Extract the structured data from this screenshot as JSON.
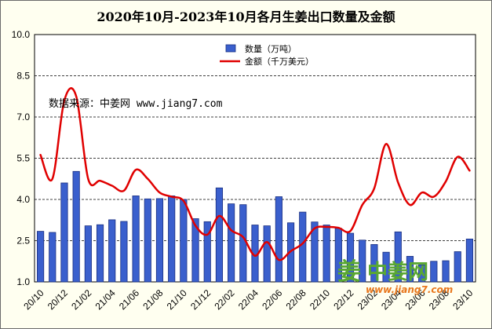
{
  "chart_data": {
    "type": "bar",
    "title": "2020年10月-2023年10月各月生姜出口数量及金额",
    "source_note": "数据来源：中姜网 www.jiang7.com",
    "categories": [
      "20/10",
      "20/11",
      "20/12",
      "21/01",
      "21/02",
      "21/03",
      "21/04",
      "21/05",
      "21/06",
      "21/07",
      "21/08",
      "21/09",
      "21/10",
      "21/11",
      "21/12",
      "22/01",
      "22/02",
      "22/03",
      "22/04",
      "22/05",
      "22/06",
      "22/07",
      "22/08",
      "22/09",
      "22/10",
      "22/11",
      "22/12",
      "23/01",
      "23/02",
      "23/03",
      "23/04",
      "23/05",
      "23/06",
      "23/07",
      "23/08",
      "23/09",
      "23/10"
    ],
    "tick_labels": [
      "20/10",
      "20/12",
      "21/02",
      "21/04",
      "21/06",
      "21/08",
      "21/10",
      "21/12",
      "22/02",
      "22/04",
      "22/06",
      "22/08",
      "22/10",
      "22/12",
      "23/02",
      "23/04",
      "23/06",
      "23/08",
      "23/10"
    ],
    "ylim": [
      1.0,
      10.0
    ],
    "yticks": [
      "1.0",
      "2.5",
      "4.0",
      "5.5",
      "7.0",
      "8.5",
      "10.0"
    ],
    "grid": true,
    "legend_position": "top-center",
    "series": [
      {
        "name": "数量（万吨）",
        "kind": "bar",
        "color": "#3a5fcd",
        "values": [
          2.84,
          2.8,
          4.6,
          5.02,
          3.04,
          3.08,
          3.26,
          3.2,
          4.13,
          4.02,
          4.03,
          4.13,
          4.0,
          3.3,
          3.19,
          4.42,
          3.84,
          3.81,
          3.07,
          3.04,
          4.1,
          3.15,
          3.54,
          3.18,
          3.07,
          2.95,
          2.77,
          2.52,
          2.36,
          2.08,
          2.82,
          1.93,
          1.62,
          1.75,
          1.77,
          2.1,
          2.56
        ]
      },
      {
        "name": "金额（千万美元）",
        "kind": "line",
        "color": "#e00000",
        "values": [
          5.62,
          4.75,
          7.6,
          7.75,
          4.75,
          4.68,
          4.5,
          4.32,
          5.08,
          4.75,
          4.25,
          4.1,
          3.95,
          3.05,
          2.72,
          3.4,
          2.88,
          2.63,
          1.95,
          2.45,
          1.8,
          2.12,
          2.4,
          2.95,
          3.0,
          2.97,
          2.85,
          3.8,
          4.4,
          6.02,
          4.62,
          3.8,
          4.25,
          4.1,
          4.65,
          5.55,
          5.05
        ]
      }
    ]
  },
  "watermark": {
    "brand": "中姜网",
    "brand_prefix_glyph": "姜",
    "url": "www.jiang7.com",
    "color_primary": "#5aa832",
    "color_accent": "#e8771d"
  },
  "colors": {
    "plot_bg": "#ffffff",
    "frame_bg": "#fffff0"
  }
}
